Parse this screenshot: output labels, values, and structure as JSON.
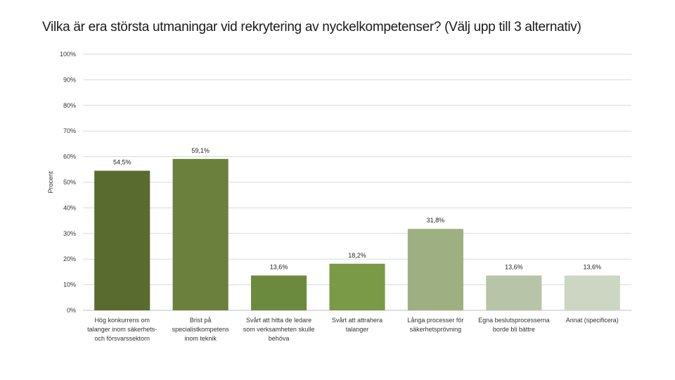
{
  "chart_data": {
    "type": "bar",
    "title": "Vilka är era största utmaningar vid rekrytering av nyckelkompetenser? (Välj upp till 3 alternativ)",
    "xlabel": "",
    "ylabel": "Procent",
    "ylim": [
      0,
      100
    ],
    "y_ticks": [
      "0%",
      "10%",
      "20%",
      "30%",
      "40%",
      "50%",
      "60%",
      "70%",
      "80%",
      "90%",
      "100%"
    ],
    "grid": true,
    "categories": [
      [
        "Hög konkurrens om",
        "talanger inom säkerhets-",
        "och försvarssektorn"
      ],
      [
        "Brist på",
        "specialistkompetens",
        "inom teknik"
      ],
      [
        "Svårt att hitta de ledare",
        "som verksamheten skulle",
        "behöva"
      ],
      [
        "Svårt att attrahera",
        "talanger"
      ],
      [
        "Långa processer för",
        "säkerhetsprövning"
      ],
      [
        "Egna beslutsprocesserna",
        "borde bli bättre"
      ],
      [
        "Annat (specificera)"
      ]
    ],
    "values": [
      54.5,
      59.1,
      13.6,
      18.2,
      31.8,
      13.6,
      13.6
    ],
    "value_labels": [
      "54,5%",
      "59,1%",
      "13,6%",
      "18,2%",
      "31,8%",
      "13,6%",
      "13,6%"
    ],
    "colors": [
      "#5a6b2f",
      "#6b803c",
      "#6b8a3e",
      "#7a9a48",
      "#9eb082",
      "#b8c4a8",
      "#cdd6c2"
    ]
  }
}
